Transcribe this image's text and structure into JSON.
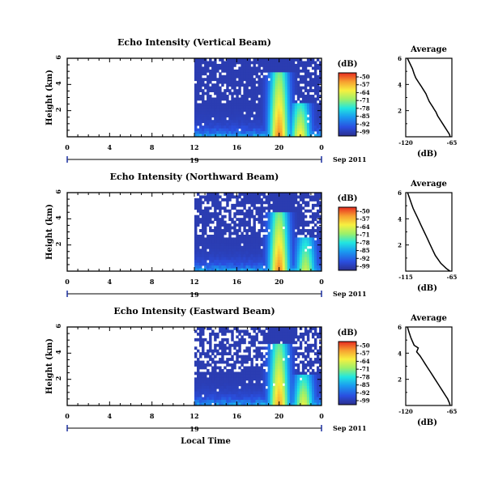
{
  "chart_data": [
    {
      "type": "heatmap",
      "title": "Echo Intensity (Vertical Beam)",
      "ylabel": "Height (km)",
      "xticks": [
        "0",
        "4",
        "8",
        "12",
        "16",
        "20",
        "0"
      ],
      "yticks": [
        "6",
        "4",
        "2"
      ],
      "xlim": [
        0,
        24
      ],
      "ylim": [
        0,
        6
      ],
      "date_label": "Sep 2011",
      "day_label": "19",
      "data_start_hour": 12,
      "colorbar": {
        "label": "(dB)",
        "ticks": [
          "-50",
          "-57",
          "-64",
          "-71",
          "-78",
          "-85",
          "-92",
          "-99"
        ]
      },
      "peaks": [
        {
          "x": 20,
          "y": 5.0,
          "intensity": 0.85
        },
        {
          "x": 22,
          "y": 2.5,
          "intensity": 0.7
        }
      ],
      "average_profile": {
        "title": "Average",
        "xlabel": "(dB)",
        "xticks": [
          "-120",
          "-65"
        ],
        "yticks": [
          "6",
          "4",
          "2"
        ],
        "xlim": [
          -120,
          -65
        ],
        "ylim": [
          0,
          6
        ],
        "x": [
          -118,
          -115,
          -112,
          -110,
          -108,
          -105,
          -102,
          -99,
          -96,
          -94,
          -92,
          -90,
          -88,
          -86,
          -84,
          -82,
          -79,
          -76,
          -73,
          -70,
          -68,
          -67
        ],
        "y": [
          6.0,
          5.6,
          5.2,
          4.8,
          4.5,
          4.2,
          3.9,
          3.6,
          3.3,
          3.0,
          2.7,
          2.5,
          2.3,
          2.1,
          1.9,
          1.6,
          1.3,
          1.0,
          0.7,
          0.4,
          0.2,
          0.0
        ]
      }
    },
    {
      "type": "heatmap",
      "title": "Echo Intensity (Northward Beam)",
      "ylabel": "Height (km)",
      "xticks": [
        "0",
        "4",
        "8",
        "12",
        "16",
        "20",
        "0"
      ],
      "yticks": [
        "6",
        "4",
        "2"
      ],
      "xlim": [
        0,
        24
      ],
      "ylim": [
        0,
        6
      ],
      "date_label": "Sep 2011",
      "day_label": "19",
      "data_start_hour": 12,
      "colorbar": {
        "label": "(dB)",
        "ticks": [
          "-50",
          "-57",
          "-64",
          "-71",
          "-78",
          "-85",
          "-92",
          "-99"
        ]
      },
      "peaks": [
        {
          "x": 20,
          "y": 4.5,
          "intensity": 0.85
        },
        {
          "x": 22.5,
          "y": 2.5,
          "intensity": 0.6
        }
      ],
      "average_profile": {
        "title": "Average",
        "xlabel": "(dB)",
        "xticks": [
          "-115",
          "-65"
        ],
        "yticks": [
          "6",
          "4",
          "2"
        ],
        "xlim": [
          -115,
          -65
        ],
        "ylim": [
          0,
          6
        ],
        "x": [
          -113,
          -111,
          -109,
          -107,
          -105,
          -103,
          -101,
          -99,
          -97,
          -95,
          -93,
          -91,
          -89,
          -87,
          -85,
          -83,
          -80,
          -77,
          -74,
          -71,
          -69,
          -67
        ],
        "y": [
          6.0,
          5.6,
          5.2,
          4.8,
          4.5,
          4.2,
          3.9,
          3.6,
          3.3,
          3.0,
          2.7,
          2.4,
          2.1,
          1.8,
          1.5,
          1.2,
          0.9,
          0.6,
          0.4,
          0.2,
          0.1,
          0.0
        ]
      }
    },
    {
      "type": "heatmap",
      "title": "Echo Intensity (Eastward Beam)",
      "ylabel": "Height (km)",
      "xlabel": "Local Time",
      "xticks": [
        "0",
        "4",
        "8",
        "12",
        "16",
        "20",
        "0"
      ],
      "yticks": [
        "6",
        "4",
        "2"
      ],
      "xlim": [
        0,
        24
      ],
      "ylim": [
        0,
        6
      ],
      "date_label": "Sep 2011",
      "day_label": "19",
      "data_start_hour": 12,
      "colorbar": {
        "label": "(dB)",
        "ticks": [
          "-50",
          "-57",
          "-64",
          "-71",
          "-78",
          "-85",
          "-92",
          "-99"
        ]
      },
      "peaks": [
        {
          "x": 20,
          "y": 4.8,
          "intensity": 0.8
        },
        {
          "x": 22.3,
          "y": 2.3,
          "intensity": 0.65
        }
      ],
      "average_profile": {
        "title": "Average",
        "xlabel": "(dB)",
        "xticks": [
          "-120",
          "-65"
        ],
        "yticks": [
          "6",
          "4",
          "2"
        ],
        "xlim": [
          -120,
          -65
        ],
        "ylim": [
          0,
          6
        ],
        "x": [
          -118,
          -116,
          -114,
          -112,
          -110,
          -105,
          -107,
          -103,
          -100,
          -97,
          -94,
          -91,
          -88,
          -85,
          -82,
          -79,
          -76,
          -73,
          -70,
          -68,
          -67
        ],
        "y": [
          6.0,
          5.6,
          5.2,
          4.9,
          4.6,
          4.4,
          4.1,
          3.8,
          3.5,
          3.2,
          2.9,
          2.6,
          2.3,
          2.0,
          1.7,
          1.4,
          1.1,
          0.8,
          0.5,
          0.2,
          0.0
        ]
      }
    }
  ]
}
